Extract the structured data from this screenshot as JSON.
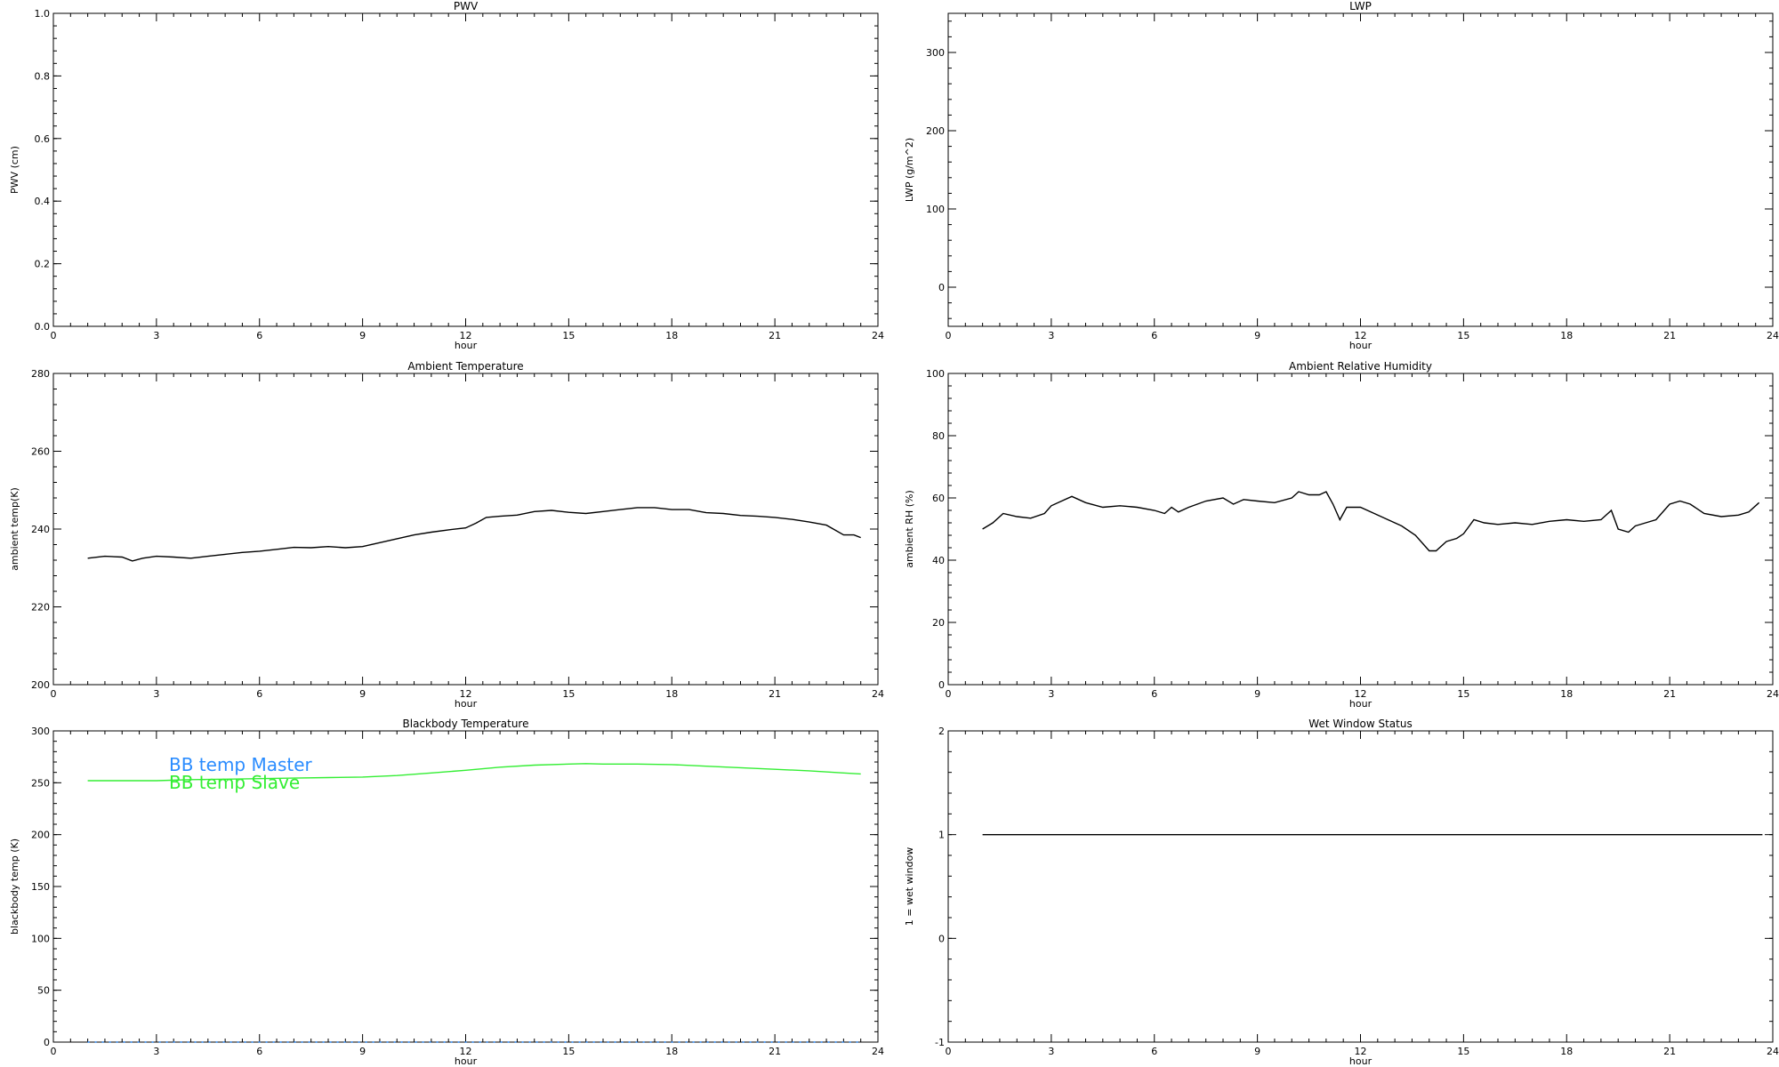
{
  "chart_data": [
    {
      "type": "line",
      "title": "PWV",
      "xlabel": "hour",
      "ylabel": "PWV (cm)",
      "xlim": [
        0,
        24
      ],
      "ylim": [
        0,
        1.0
      ],
      "xticks": [
        0,
        3,
        6,
        9,
        12,
        15,
        18,
        21,
        24
      ],
      "xtick_labels": [
        "0",
        "3",
        "6",
        "9",
        "12",
        "15",
        "18",
        "21",
        "24"
      ],
      "yticks": [
        0,
        0.2,
        0.4,
        0.6,
        0.8,
        1.0
      ],
      "ytick_labels": [
        "0.0",
        "0.2",
        "0.4",
        "0.6",
        "0.8",
        "1.0"
      ],
      "grid": false,
      "series": []
    },
    {
      "type": "line",
      "title": "LWP",
      "xlabel": "hour",
      "ylabel": "LWP (g/m^2)",
      "xlim": [
        0,
        24
      ],
      "ylim": [
        -50,
        350
      ],
      "xticks": [
        0,
        3,
        6,
        9,
        12,
        15,
        18,
        21,
        24
      ],
      "xtick_labels": [
        "0",
        "3",
        "6",
        "9",
        "12",
        "15",
        "18",
        "21",
        "24"
      ],
      "yticks": [
        0,
        100,
        200,
        300
      ],
      "ytick_labels": [
        "0",
        "100",
        "200",
        "300"
      ],
      "grid": false,
      "series": []
    },
    {
      "type": "line",
      "title": "Ambient Temperature",
      "xlabel": "hour",
      "ylabel": "ambient temp(K)",
      "xlim": [
        0,
        24
      ],
      "ylim": [
        200,
        280
      ],
      "xticks": [
        0,
        3,
        6,
        9,
        12,
        15,
        18,
        21,
        24
      ],
      "xtick_labels": [
        "0",
        "3",
        "6",
        "9",
        "12",
        "15",
        "18",
        "21",
        "24"
      ],
      "yticks": [
        200,
        220,
        240,
        260,
        280
      ],
      "ytick_labels": [
        "200",
        "220",
        "240",
        "260",
        "280"
      ],
      "grid": false,
      "series": [
        {
          "color": "#000000",
          "x": [
            1.0,
            1.5,
            2.0,
            2.3,
            2.6,
            3.0,
            3.5,
            4.0,
            4.5,
            5.0,
            5.5,
            6.0,
            6.5,
            7.0,
            7.5,
            8.0,
            8.5,
            9.0,
            9.5,
            10.0,
            10.5,
            11.0,
            11.5,
            12.0,
            12.3,
            12.6,
            13.0,
            13.5,
            14.0,
            14.5,
            15.0,
            15.5,
            16.0,
            16.5,
            17.0,
            17.5,
            18.0,
            18.5,
            19.0,
            19.5,
            20.0,
            20.5,
            21.0,
            21.5,
            22.0,
            22.5,
            23.0,
            23.3,
            23.5
          ],
          "y": [
            232.5,
            233,
            232.8,
            231.8,
            232.5,
            233,
            232.8,
            232.5,
            233,
            233.5,
            234,
            234.3,
            234.8,
            235.3,
            235.2,
            235.5,
            235.2,
            235.5,
            236.5,
            237.5,
            238.5,
            239.2,
            239.8,
            240.3,
            241.5,
            243,
            243.3,
            243.6,
            244.5,
            244.8,
            244.3,
            244,
            244.5,
            245,
            245.5,
            245.5,
            245,
            245,
            244.2,
            244,
            243.5,
            243.3,
            243,
            242.5,
            241.8,
            241,
            238.5,
            238.5,
            237.8
          ]
        }
      ]
    },
    {
      "type": "line",
      "title": "Ambient Relative Humidity",
      "xlabel": "hour",
      "ylabel": "ambient RH (%)",
      "xlim": [
        0,
        24
      ],
      "ylim": [
        0,
        100
      ],
      "xticks": [
        0,
        3,
        6,
        9,
        12,
        15,
        18,
        21,
        24
      ],
      "xtick_labels": [
        "0",
        "3",
        "6",
        "9",
        "12",
        "15",
        "18",
        "21",
        "24"
      ],
      "yticks": [
        0,
        20,
        40,
        60,
        80,
        100
      ],
      "ytick_labels": [
        "0",
        "20",
        "40",
        "60",
        "80",
        "100"
      ],
      "grid": false,
      "series": [
        {
          "color": "#000000",
          "x": [
            1.0,
            1.3,
            1.6,
            2.0,
            2.4,
            2.8,
            3.0,
            3.3,
            3.6,
            4.0,
            4.5,
            5.0,
            5.5,
            6.0,
            6.3,
            6.5,
            6.7,
            7.0,
            7.5,
            8.0,
            8.3,
            8.6,
            9.0,
            9.5,
            10.0,
            10.2,
            10.5,
            10.8,
            11.0,
            11.2,
            11.4,
            11.6,
            12.0,
            12.4,
            12.8,
            13.2,
            13.6,
            14.0,
            14.2,
            14.5,
            14.8,
            15.0,
            15.3,
            15.6,
            16.0,
            16.5,
            17.0,
            17.5,
            18.0,
            18.5,
            19.0,
            19.3,
            19.5,
            19.8,
            20.0,
            20.3,
            20.6,
            21.0,
            21.3,
            21.6,
            22.0,
            22.5,
            23.0,
            23.3,
            23.6
          ],
          "y": [
            50,
            52,
            55,
            54,
            53.5,
            55,
            57.5,
            59,
            60.5,
            58.5,
            57,
            57.5,
            57,
            56,
            55,
            57,
            55.5,
            57,
            59,
            60,
            58,
            59.5,
            59,
            58.5,
            60,
            62,
            61,
            61,
            62,
            58,
            53,
            57,
            57,
            55,
            53,
            51,
            48,
            43,
            43,
            46,
            47,
            48.5,
            53,
            52,
            51.5,
            52,
            51.5,
            52.5,
            53,
            52.5,
            53,
            56,
            50,
            49,
            51,
            52,
            53,
            58,
            59,
            58,
            55,
            54,
            54.5,
            55.5,
            58.5
          ]
        }
      ]
    },
    {
      "type": "line",
      "title": "Blackbody Temperature",
      "xlabel": "hour",
      "ylabel": "blackbody temp (K)",
      "xlim": [
        0,
        24
      ],
      "ylim": [
        0,
        300
      ],
      "xticks": [
        0,
        3,
        6,
        9,
        12,
        15,
        18,
        21,
        24
      ],
      "xtick_labels": [
        "0",
        "3",
        "6",
        "9",
        "12",
        "15",
        "18",
        "21",
        "24"
      ],
      "yticks": [
        0,
        50,
        100,
        150,
        200,
        250,
        300
      ],
      "ytick_labels": [
        "0",
        "50",
        "100",
        "150",
        "200",
        "250",
        "300"
      ],
      "grid": false,
      "legend": [
        "BB temp Master",
        "BB temp Slave"
      ],
      "legend_placement": "top-left",
      "series": [
        {
          "name": "BB temp Master",
          "color": "#2a8cff",
          "dashed": true,
          "x": [
            1.0,
            23.5
          ],
          "y": [
            0,
            0
          ]
        },
        {
          "name": "BB temp Slave",
          "color": "#33ee33",
          "dashed": false,
          "x": [
            1.0,
            2.0,
            3.0,
            4.0,
            5.0,
            6.0,
            7.0,
            8.0,
            9.0,
            10.0,
            11.0,
            12.0,
            13.0,
            14.0,
            15.0,
            15.5,
            16.0,
            17.0,
            18.0,
            19.0,
            20.0,
            21.0,
            22.0,
            23.0,
            23.5
          ],
          "y": [
            252,
            252,
            252,
            253,
            253.5,
            254,
            254.5,
            255,
            255.5,
            257,
            259.5,
            262,
            265,
            267,
            268,
            268.5,
            268,
            268,
            267.5,
            266,
            264.5,
            263,
            261.5,
            259.5,
            258.5
          ]
        }
      ]
    },
    {
      "type": "line",
      "title": "Wet Window Status",
      "xlabel": "hour",
      "ylabel": "1 = wet window",
      "xlim": [
        0,
        24
      ],
      "ylim": [
        -1,
        2
      ],
      "xticks": [
        0,
        3,
        6,
        9,
        12,
        15,
        18,
        21,
        24
      ],
      "xtick_labels": [
        "0",
        "3",
        "6",
        "9",
        "12",
        "15",
        "18",
        "21",
        "24"
      ],
      "yticks": [
        -1,
        0,
        1,
        2
      ],
      "ytick_labels": [
        "-1",
        "0",
        "1",
        "2"
      ],
      "grid": false,
      "series": [
        {
          "color": "#000000",
          "x": [
            1.0,
            23.7
          ],
          "y": [
            1,
            1
          ]
        }
      ]
    }
  ]
}
